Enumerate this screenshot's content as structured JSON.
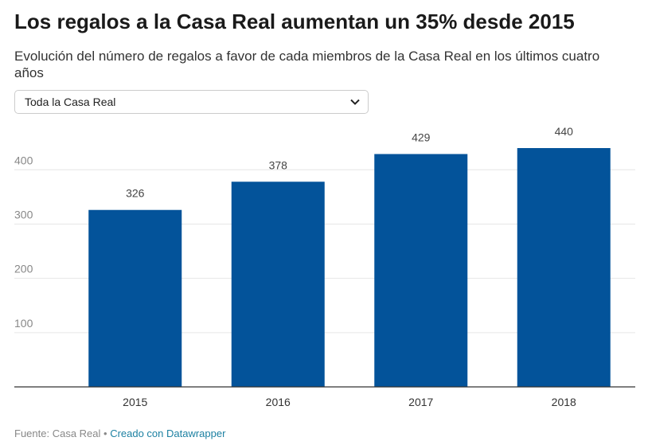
{
  "title": "Los regalos a la Casa Real aumentan un 35% desde 2015",
  "subtitle": "Evolución del número de regalos a favor de cada miembros de la Casa Real en los últimos cuatro años",
  "dropdown": {
    "selected": "Toda la Casa Real"
  },
  "footer": {
    "source": "Fuente: Casa Real",
    "separator": " • ",
    "credit": "Creado con Datawrapper"
  },
  "colors": {
    "bar": "#03539a",
    "grid": "#e6e6e6",
    "axis": "#333333",
    "link": "#1d81a2"
  },
  "chart_data": {
    "type": "bar",
    "categories": [
      "2015",
      "2016",
      "2017",
      "2018"
    ],
    "values": [
      326,
      378,
      429,
      440
    ],
    "ylim": [
      0,
      440
    ],
    "yticks": [
      100,
      200,
      300,
      400
    ],
    "grid": true,
    "data_labels": true
  }
}
